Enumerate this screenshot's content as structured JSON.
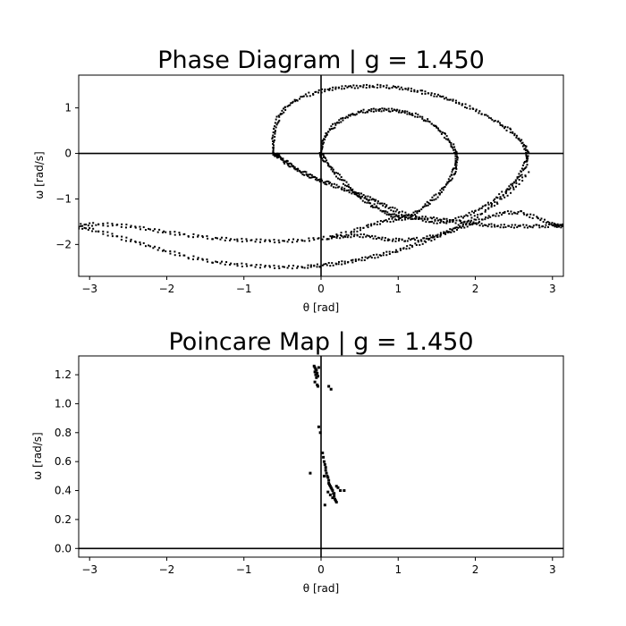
{
  "chart_data": [
    {
      "type": "scatter",
      "title": "Phase Diagram | g = 1.450",
      "xlabel": "θ [rad]",
      "ylabel": "ω [rad/s]",
      "xlim": [
        -3.14159,
        3.14159
      ],
      "ylim": [
        -2.7,
        1.72
      ],
      "xticks": [
        -3,
        -2,
        -1,
        0,
        1,
        2,
        3
      ],
      "xtick_labels": [
        "−3",
        "−2",
        "−1",
        "0",
        "1",
        "2",
        "3"
      ],
      "yticks": [
        -2,
        -1,
        0,
        1
      ],
      "ytick_labels": [
        "−2",
        "−1",
        "0",
        "1"
      ],
      "reference_lines": {
        "x": 0,
        "y": 0
      },
      "grid": false,
      "color": "#000000",
      "series": [
        {
          "x": [
            -0.62,
            -0.62,
            -0.6,
            -0.55,
            -0.45,
            -0.3,
            -0.1,
            0.1,
            0.3,
            0.5,
            0.7,
            0.9,
            1.1,
            1.3,
            1.5,
            1.7,
            1.9,
            2.1,
            2.3,
            2.45,
            2.58,
            2.66,
            2.68,
            2.66,
            2.6,
            2.5,
            2.38,
            2.2,
            2.0,
            1.8,
            1.6,
            1.4,
            1.2,
            1.0,
            0.85,
            0.7,
            0.55,
            0.4,
            0.25,
            0.1,
            0.0,
            -0.1,
            -0.2,
            -0.3,
            -0.38,
            -0.45,
            -0.5,
            -0.55,
            -0.58,
            -0.61
          ],
          "y": [
            0,
            0.3,
            0.55,
            0.8,
            1.02,
            1.2,
            1.33,
            1.41,
            1.45,
            1.47,
            1.48,
            1.46,
            1.42,
            1.35,
            1.27,
            1.17,
            1.03,
            0.87,
            0.67,
            0.5,
            0.3,
            0.1,
            -0.05,
            -0.2,
            -0.42,
            -0.65,
            -0.85,
            -1.08,
            -1.27,
            -1.43,
            -1.52,
            -1.49,
            -1.4,
            -1.28,
            -1.16,
            -1.04,
            -0.94,
            -0.85,
            -0.76,
            -0.66,
            -0.6,
            -0.53,
            -0.45,
            -0.36,
            -0.28,
            -0.2,
            -0.13,
            -0.07,
            -0.03,
            -0.01
          ]
        },
        {
          "x": [
            0.0,
            0.02,
            0.08,
            0.18,
            0.3,
            0.45,
            0.6,
            0.75,
            0.9,
            1.05,
            1.2,
            1.35,
            1.48,
            1.6,
            1.7,
            1.75,
            1.76,
            1.74,
            1.7,
            1.62,
            1.52,
            1.4,
            1.28,
            1.15,
            1.02,
            0.9,
            0.78,
            0.65,
            0.52,
            0.4,
            0.28,
            0.17,
            0.08,
            0.02,
            0.0
          ],
          "y": [
            0.0,
            0.25,
            0.45,
            0.63,
            0.78,
            0.88,
            0.94,
            0.96,
            0.95,
            0.92,
            0.86,
            0.75,
            0.6,
            0.4,
            0.18,
            0.0,
            -0.15,
            -0.32,
            -0.5,
            -0.7,
            -0.9,
            -1.08,
            -1.25,
            -1.38,
            -1.4,
            -1.35,
            -1.25,
            -1.12,
            -0.97,
            -0.8,
            -0.6,
            -0.4,
            -0.22,
            -0.08,
            0.0
          ]
        },
        {
          "x": [
            -3.14,
            -2.9,
            -2.6,
            -2.3,
            -2.0,
            -1.7,
            -1.4,
            -1.1,
            -0.8,
            -0.5,
            -0.2,
            0.1,
            0.4,
            0.6,
            0.8,
            1.0,
            1.2,
            1.4,
            1.6,
            1.8,
            2.0,
            2.2,
            2.4,
            2.6,
            2.8,
            3.0,
            3.14
          ],
          "y": [
            -1.58,
            -1.55,
            -1.58,
            -1.65,
            -1.73,
            -1.8,
            -1.86,
            -1.9,
            -1.92,
            -1.93,
            -1.9,
            -1.85,
            -1.72,
            -1.6,
            -1.5,
            -1.44,
            -1.41,
            -1.42,
            -1.46,
            -1.51,
            -1.55,
            -1.58,
            -1.6,
            -1.6,
            -1.6,
            -1.59,
            -1.58
          ]
        },
        {
          "x": [
            -3.14,
            -2.9,
            -2.6,
            -2.3,
            -2.0,
            -1.7,
            -1.4,
            -1.1,
            -0.8,
            -0.5,
            -0.2,
            0.0,
            0.2,
            0.4,
            0.6,
            0.8,
            1.0,
            1.2,
            1.4,
            1.6,
            1.8,
            2.0,
            2.2,
            2.4,
            2.6,
            2.8,
            3.0,
            3.14
          ],
          "y": [
            -1.62,
            -1.7,
            -1.85,
            -2.0,
            -2.15,
            -2.28,
            -2.38,
            -2.44,
            -2.48,
            -2.5,
            -2.49,
            -2.46,
            -2.42,
            -2.37,
            -2.3,
            -2.22,
            -2.13,
            -2.02,
            -1.9,
            -1.77,
            -1.63,
            -1.5,
            -1.38,
            -1.3,
            -1.3,
            -1.42,
            -1.55,
            -1.6
          ]
        },
        {
          "x": [
            0.1,
            0.3,
            0.5,
            0.7,
            0.9,
            1.1,
            1.3,
            1.5,
            1.7,
            1.9,
            2.1,
            2.3,
            2.5,
            2.7
          ],
          "y": [
            -1.85,
            -1.82,
            -1.8,
            -1.85,
            -1.9,
            -1.9,
            -1.88,
            -1.8,
            -1.68,
            -1.5,
            -1.3,
            -1.05,
            -0.75,
            -0.4
          ]
        }
      ]
    },
    {
      "type": "scatter",
      "title": "Poincare Map | g = 1.450",
      "xlabel": "θ [rad]",
      "ylabel": "ω [rad/s]",
      "xlim": [
        -3.14159,
        3.14159
      ],
      "ylim": [
        -0.06,
        1.33
      ],
      "xticks": [
        -3,
        -2,
        -1,
        0,
        1,
        2,
        3
      ],
      "xtick_labels": [
        "−3",
        "−2",
        "−1",
        "0",
        "1",
        "2",
        "3"
      ],
      "yticks": [
        0.0,
        0.2,
        0.4,
        0.6,
        0.8,
        1.0,
        1.2
      ],
      "ytick_labels": [
        "0.0",
        "0.2",
        "0.4",
        "0.6",
        "0.8",
        "1.0",
        "1.2"
      ],
      "reference_lines": {
        "x": 0,
        "y": 0
      },
      "grid": false,
      "color": "#000000",
      "points": {
        "x": [
          -0.09,
          -0.08,
          -0.07,
          -0.06,
          -0.08,
          -0.05,
          -0.07,
          -0.04,
          -0.06,
          -0.08,
          -0.05,
          -0.04,
          -0.03,
          0.1,
          0.13,
          -0.03,
          -0.01,
          0.02,
          0.03,
          0.04,
          0.05,
          0.06,
          0.06,
          0.07,
          0.08,
          0.09,
          0.1,
          0.1,
          0.11,
          0.12,
          0.13,
          0.14,
          0.15,
          0.16,
          0.17,
          0.18,
          0.19,
          0.2,
          0.22,
          0.25,
          0.3,
          -0.14,
          0.05,
          0.09,
          0.12,
          0.15,
          0.2,
          0.04,
          0.17
        ],
        "y": [
          1.26,
          1.25,
          1.24,
          1.23,
          1.22,
          1.21,
          1.2,
          1.19,
          1.18,
          1.15,
          1.13,
          1.12,
          1.25,
          1.12,
          1.1,
          0.84,
          0.8,
          0.66,
          0.63,
          0.6,
          0.58,
          0.56,
          0.54,
          0.52,
          0.5,
          0.49,
          0.47,
          0.45,
          0.44,
          0.43,
          0.42,
          0.41,
          0.4,
          0.38,
          0.36,
          0.34,
          0.33,
          0.32,
          0.42,
          0.4,
          0.4,
          0.52,
          0.3,
          0.39,
          0.37,
          0.35,
          0.43,
          0.5,
          0.38
        ]
      }
    }
  ]
}
